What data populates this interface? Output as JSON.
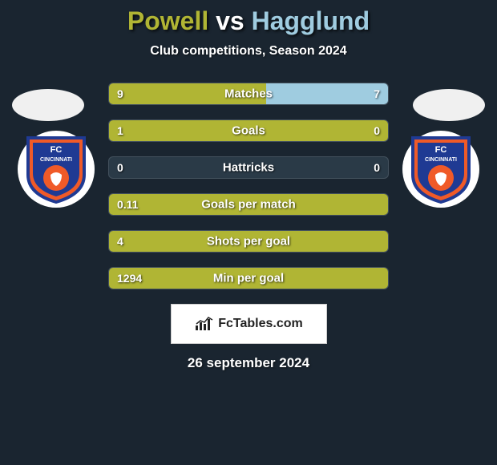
{
  "title": {
    "player_left": "Powell",
    "vs": "vs",
    "player_right": "Hagglund",
    "color_left": "#b0b534",
    "color_vs": "#ffffff",
    "color_right": "#9fcce0"
  },
  "subtitle": "Club competitions, Season 2024",
  "background_color": "#1a2530",
  "flags": {
    "left_color": "#f0f0f0",
    "right_color": "#f0f0f0"
  },
  "club_badges": {
    "left": {
      "bg": "#ffffff",
      "primary": "#f05a28",
      "secondary": "#1f3a93",
      "text": "FC",
      "text2": "CINCINNATI"
    },
    "right": {
      "bg": "#ffffff",
      "primary": "#f05a28",
      "secondary": "#1f3a93",
      "text": "FC",
      "text2": "CINCINNATI"
    }
  },
  "bars": {
    "color_left": "#b0b534",
    "color_right": "#9fcce0",
    "track_color": "#2a3a47",
    "rows": [
      {
        "label": "Matches",
        "left": "9",
        "right": "7",
        "left_pct": 56.25,
        "right_pct": 43.75
      },
      {
        "label": "Goals",
        "left": "1",
        "right": "0",
        "left_pct": 100,
        "right_pct": 0
      },
      {
        "label": "Hattricks",
        "left": "0",
        "right": "0",
        "left_pct": 0,
        "right_pct": 0
      },
      {
        "label": "Goals per match",
        "left": "0.11",
        "right": "",
        "left_pct": 100,
        "right_pct": 0
      },
      {
        "label": "Shots per goal",
        "left": "4",
        "right": "",
        "left_pct": 100,
        "right_pct": 0
      },
      {
        "label": "Min per goal",
        "left": "1294",
        "right": "",
        "left_pct": 100,
        "right_pct": 0
      }
    ]
  },
  "footer": {
    "brand": "FcTables.com"
  },
  "date": "26 september 2024"
}
